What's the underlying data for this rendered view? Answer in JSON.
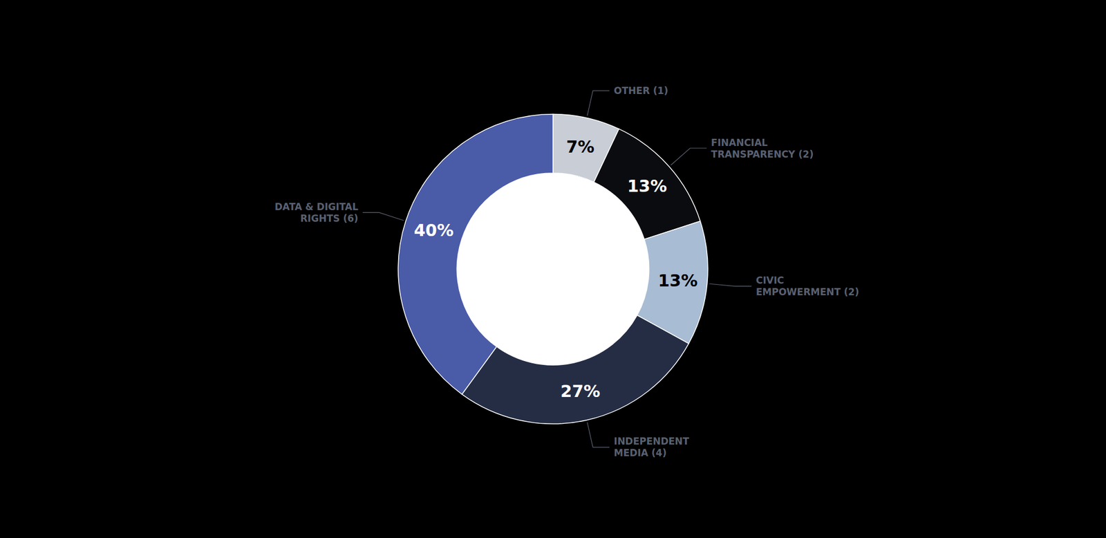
{
  "chart_data": {
    "type": "donut",
    "categories": [
      "OTHER (1)",
      "FINANCIAL\nTRANSPARENCY (2)",
      "CIVIC\nEMPOWERMENT (2)",
      "INDEPENDENT\nMEDIA (4)",
      "DATA & DIGITAL\nRIGHTS (6)"
    ],
    "values": [
      7,
      13,
      13,
      27,
      40
    ],
    "value_labels": [
      "7%",
      "13%",
      "13%",
      "27%",
      "40%"
    ],
    "colors": [
      "#c8cdd6",
      "#0a0c10",
      "#a8bcd4",
      "#252d45",
      "#4a5ba8"
    ],
    "data_labels": true
  }
}
